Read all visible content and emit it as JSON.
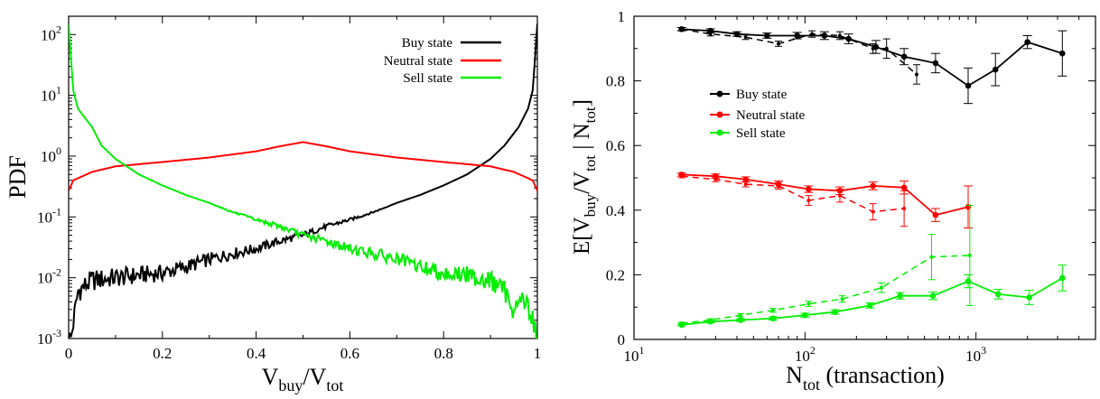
{
  "chart_data": [
    {
      "type": "line",
      "ylabel": "PDF",
      "xlabel_main": "V",
      "xlabel_sub1": "buy",
      "xlabel_slash": "/V",
      "xlabel_sub2": "tot",
      "xlim": [
        0,
        1
      ],
      "ylim": [
        0.001,
        200
      ],
      "yscale": "log",
      "xticks": [
        "0",
        "0.2",
        "0.4",
        "0.6",
        "0.8",
        "1"
      ],
      "yticks": [
        {
          "base": "10",
          "exp": "-3"
        },
        {
          "base": "10",
          "exp": "-2"
        },
        {
          "base": "10",
          "exp": "-1"
        },
        {
          "base": "10",
          "exp": "0"
        },
        {
          "base": "10",
          "exp": "1"
        },
        {
          "base": "10",
          "exp": "2"
        }
      ],
      "legend_position": "top-right",
      "series": [
        {
          "name": "Buy state",
          "color": "#000000",
          "x": [
            0.005,
            0.02,
            0.05,
            0.1,
            0.15,
            0.2,
            0.25,
            0.3,
            0.35,
            0.4,
            0.45,
            0.5,
            0.55,
            0.6,
            0.65,
            0.7,
            0.75,
            0.8,
            0.85,
            0.9,
            0.93,
            0.96,
            0.98,
            0.99,
            0.995,
            1.0
          ],
          "y": [
            0.001,
            0.006,
            0.009,
            0.01,
            0.011,
            0.012,
            0.015,
            0.02,
            0.025,
            0.03,
            0.04,
            0.05,
            0.07,
            0.09,
            0.12,
            0.17,
            0.23,
            0.33,
            0.5,
            0.9,
            1.5,
            3,
            6,
            12,
            40,
            150
          ]
        },
        {
          "name": "Neutral state",
          "color": "#ff0000",
          "x": [
            0.0,
            0.01,
            0.05,
            0.1,
            0.2,
            0.3,
            0.4,
            0.45,
            0.5,
            0.55,
            0.6,
            0.7,
            0.8,
            0.9,
            0.95,
            0.99,
            1.0
          ],
          "y": [
            0.27,
            0.4,
            0.55,
            0.68,
            0.8,
            0.95,
            1.2,
            1.45,
            1.7,
            1.45,
            1.2,
            0.95,
            0.8,
            0.68,
            0.55,
            0.4,
            0.27
          ]
        },
        {
          "name": "Sell state",
          "color": "#00ee00",
          "x": [
            0.0,
            0.005,
            0.01,
            0.02,
            0.05,
            0.07,
            0.1,
            0.15,
            0.2,
            0.25,
            0.3,
            0.35,
            0.4,
            0.45,
            0.5,
            0.55,
            0.6,
            0.65,
            0.7,
            0.75,
            0.8,
            0.85,
            0.9,
            0.93,
            0.95,
            0.97,
            0.99,
            1.0
          ],
          "y": [
            150,
            40,
            12,
            6,
            3,
            1.5,
            0.9,
            0.5,
            0.33,
            0.23,
            0.17,
            0.12,
            0.09,
            0.07,
            0.05,
            0.04,
            0.03,
            0.025,
            0.02,
            0.015,
            0.012,
            0.011,
            0.009,
            0.006,
            0.003,
            0.005,
            0.002,
            0.001
          ]
        }
      ]
    },
    {
      "type": "line",
      "ylabel_pre": "E[V",
      "ylabel_sub1": "buy",
      "ylabel_mid": "/V",
      "ylabel_sub2": "tot",
      "ylabel_bar": " | N",
      "ylabel_sub3": "tot",
      "ylabel_post": "]",
      "xlabel_main": "N",
      "xlabel_sub": "tot",
      "xlabel_post": " (transaction)",
      "xlim": [
        10,
        5000
      ],
      "ylim": [
        0,
        1
      ],
      "xscale": "log",
      "xticks": [
        {
          "base": "10",
          "exp": "1"
        },
        {
          "base": "10",
          "exp": "2"
        },
        {
          "base": "10",
          "exp": "3"
        }
      ],
      "yticks": [
        "0",
        "0.2",
        "0.4",
        "0.6",
        "0.8",
        "1"
      ],
      "legend_position": "center-left",
      "series": [
        {
          "name": "Buy state",
          "color": "#000000",
          "style": "solid",
          "x": [
            19,
            28,
            40,
            60,
            90,
            130,
            180,
            260,
            380,
            580,
            900,
            1300,
            2000,
            3200
          ],
          "y": [
            0.96,
            0.955,
            0.945,
            0.94,
            0.94,
            0.94,
            0.93,
            0.905,
            0.875,
            0.855,
            0.785,
            0.835,
            0.92,
            0.885
          ],
          "err": [
            0.005,
            0.006,
            0.007,
            0.008,
            0.01,
            0.012,
            0.015,
            0.02,
            0.025,
            0.03,
            0.055,
            0.05,
            0.02,
            0.07
          ]
        },
        {
          "name": "",
          "color": "#000000",
          "style": "dashed",
          "x": [
            19,
            28,
            45,
            70,
            110,
            160,
            250,
            300,
            450
          ],
          "y": [
            0.96,
            0.945,
            0.935,
            0.915,
            0.945,
            0.94,
            0.9,
            0.9,
            0.82
          ],
          "err": [
            0.005,
            0.006,
            0.007,
            0.008,
            0.01,
            0.012,
            0.015,
            0.03,
            0.03
          ]
        },
        {
          "name": "Neutral state",
          "color": "#ff0000",
          "style": "solid",
          "x": [
            19,
            30,
            45,
            70,
            105,
            160,
            250,
            380,
            580,
            900
          ],
          "y": [
            0.51,
            0.505,
            0.495,
            0.48,
            0.465,
            0.46,
            0.475,
            0.47,
            0.385,
            0.41
          ],
          "err": [
            0.005,
            0.007,
            0.008,
            0.01,
            0.01,
            0.012,
            0.012,
            0.02,
            0.02,
            0.065
          ]
        },
        {
          "name": "",
          "color": "#ff0000",
          "style": "dashed",
          "x": [
            19,
            30,
            45,
            70,
            105,
            160,
            250,
            380
          ],
          "y": [
            0.505,
            0.495,
            0.48,
            0.475,
            0.43,
            0.445,
            0.395,
            0.405
          ],
          "err": [
            0.005,
            0.007,
            0.008,
            0.01,
            0.015,
            0.02,
            0.025,
            0.055
          ]
        },
        {
          "name": "Sell state",
          "color": "#00ee00",
          "style": "solid",
          "x": [
            19,
            28,
            42,
            65,
            100,
            150,
            240,
            360,
            560,
            900,
            1350,
            2050,
            3200
          ],
          "y": [
            0.045,
            0.055,
            0.06,
            0.065,
            0.075,
            0.085,
            0.105,
            0.135,
            0.135,
            0.18,
            0.14,
            0.13,
            0.19
          ],
          "err": [
            0.003,
            0.004,
            0.004,
            0.005,
            0.006,
            0.007,
            0.008,
            0.01,
            0.012,
            0.02,
            0.015,
            0.022,
            0.04
          ]
        },
        {
          "name": "",
          "color": "#00ee00",
          "style": "dashed",
          "x": [
            19,
            28,
            42,
            65,
            105,
            165,
            280,
            550,
            920
          ],
          "y": [
            0.05,
            0.06,
            0.075,
            0.09,
            0.11,
            0.125,
            0.16,
            0.255,
            0.26
          ],
          "err": [
            0.003,
            0.004,
            0.005,
            0.006,
            0.008,
            0.01,
            0.015,
            0.07,
            0.155
          ]
        }
      ]
    }
  ]
}
